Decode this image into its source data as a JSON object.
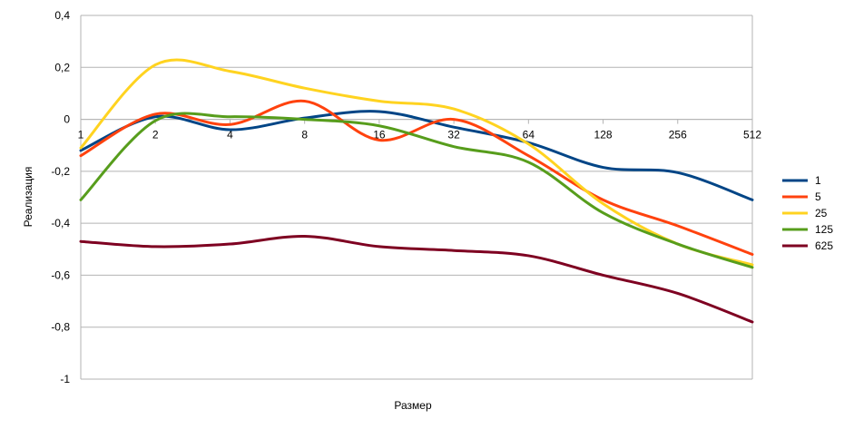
{
  "chart_data": {
    "type": "line",
    "xlabel": "Размер",
    "ylabel": "Реализация",
    "x_scale": "log2",
    "x_categories": [
      "1",
      "2",
      "4",
      "8",
      "16",
      "32",
      "64",
      "128",
      "256",
      "512"
    ],
    "y_ticks": [
      "-1",
      "-0,8",
      "-0,6",
      "-0,4",
      "-0,2",
      "0",
      "0,2",
      "0,4"
    ],
    "ylim": [
      -1,
      0.4
    ],
    "grid": "horizontal",
    "legend_position": "right",
    "series": [
      {
        "name": "1",
        "color": "#004586",
        "values": [
          -0.12,
          0.01,
          -0.04,
          0.005,
          0.03,
          -0.03,
          -0.09,
          -0.185,
          -0.205,
          -0.31
        ]
      },
      {
        "name": "5",
        "color": "#ff420e",
        "values": [
          -0.14,
          0.02,
          -0.02,
          0.07,
          -0.08,
          0.0,
          -0.14,
          -0.31,
          -0.41,
          -0.52
        ]
      },
      {
        "name": "25",
        "color": "#ffd320",
        "values": [
          -0.11,
          0.21,
          0.185,
          0.12,
          0.07,
          0.04,
          -0.095,
          -0.325,
          -0.48,
          -0.56
        ]
      },
      {
        "name": "125",
        "color": "#579d1c",
        "values": [
          -0.31,
          -0.005,
          0.01,
          0.0,
          -0.025,
          -0.105,
          -0.165,
          -0.36,
          -0.48,
          -0.57
        ]
      },
      {
        "name": "625",
        "color": "#7e0021",
        "values": [
          -0.47,
          -0.49,
          -0.48,
          -0.45,
          -0.49,
          -0.505,
          -0.525,
          -0.6,
          -0.67,
          -0.78
        ]
      }
    ]
  }
}
